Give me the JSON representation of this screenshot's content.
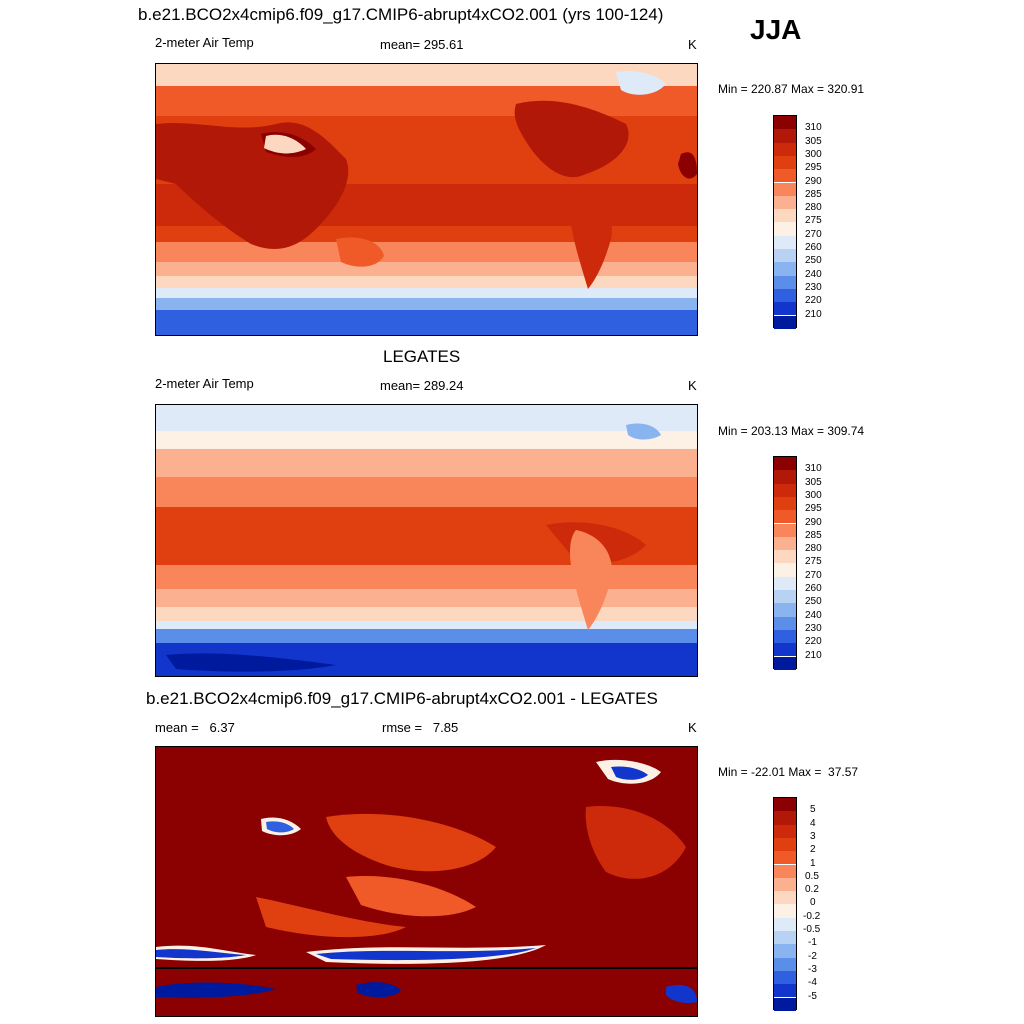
{
  "season": "JJA",
  "panels": [
    {
      "title": "b.e21.BCO2x4cmip6.f09_g17.CMIP6-abrupt4xCO2.001 (yrs 100-124)",
      "left_label": "2-meter Air Temp",
      "center_label": "mean= 295.61",
      "units": "K",
      "minmax": "Min = 220.87 Max = 320.91",
      "colorbar": {
        "labels": [
          "310",
          "305",
          "300",
          "295",
          "290",
          "285",
          "280",
          "275",
          "270",
          "260",
          "250",
          "240",
          "230",
          "220",
          "210"
        ],
        "colors": [
          "#8b0000",
          "#b21807",
          "#cc2a0a",
          "#e0400f",
          "#f05a28",
          "#f8865a",
          "#fbb090",
          "#fdd8c0",
          "#fdf0e4",
          "#dfeaf8",
          "#b8d2f4",
          "#8ab4ef",
          "#5a8ee8",
          "#2f60e0",
          "#1236cc",
          "#001a9e"
        ]
      }
    },
    {
      "title": "LEGATES",
      "left_label": "2-meter Air Temp",
      "center_label": "mean= 289.24",
      "units": "K",
      "minmax": "Min = 203.13 Max = 309.74",
      "colorbar": {
        "labels": [
          "310",
          "305",
          "300",
          "295",
          "290",
          "285",
          "280",
          "275",
          "270",
          "260",
          "250",
          "240",
          "230",
          "220",
          "210"
        ],
        "colors": [
          "#8b0000",
          "#b21807",
          "#cc2a0a",
          "#e0400f",
          "#f05a28",
          "#f8865a",
          "#fbb090",
          "#fdd8c0",
          "#fdf0e4",
          "#dfeaf8",
          "#b8d2f4",
          "#8ab4ef",
          "#5a8ee8",
          "#2f60e0",
          "#1236cc",
          "#001a9e"
        ]
      }
    },
    {
      "title": "b.e21.BCO2x4cmip6.f09_g17.CMIP6-abrupt4xCO2.001 - LEGATES",
      "left_label": "mean =   6.37",
      "center_label": "rmse =   7.85",
      "units": "K",
      "minmax": "Min = -22.01 Max =  37.57",
      "colorbar": {
        "labels": [
          "5",
          "4",
          "3",
          "2",
          "1",
          "0.5",
          "0.2",
          "0",
          "-0.2",
          "-0.5",
          "-1",
          "-2",
          "-3",
          "-4",
          "-5"
        ],
        "colors": [
          "#8b0000",
          "#b21807",
          "#cc2a0a",
          "#e0400f",
          "#f05a28",
          "#f8865a",
          "#fbb090",
          "#fdd8c0",
          "#fdf0e4",
          "#dfeaf8",
          "#b8d2f4",
          "#8ab4ef",
          "#5a8ee8",
          "#2f60e0",
          "#1236cc",
          "#001a9e"
        ]
      }
    }
  ]
}
